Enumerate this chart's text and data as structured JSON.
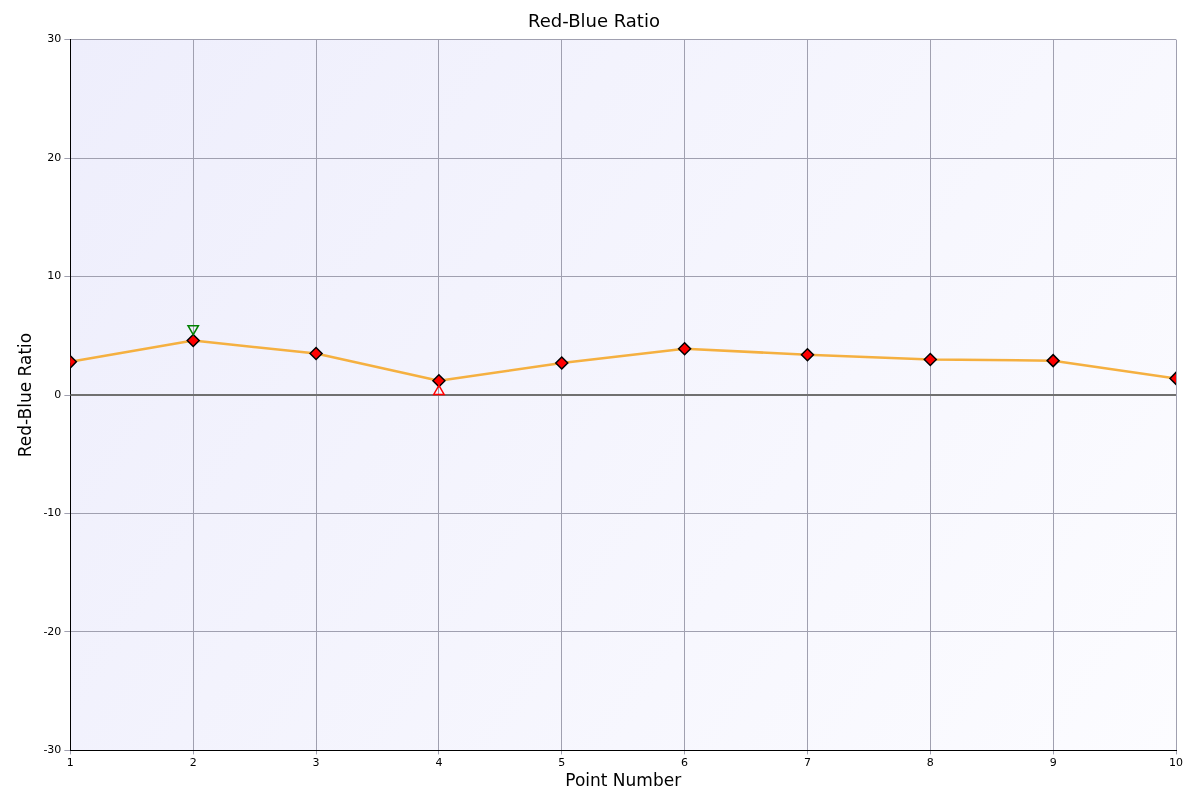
{
  "chart_data": {
    "type": "line",
    "title": "Red-Blue Ratio",
    "xlabel": "Point Number",
    "ylabel": "Red-Blue Ratio",
    "x": [
      1,
      2,
      3,
      4,
      5,
      6,
      7,
      8,
      9,
      10
    ],
    "series": [
      {
        "color": "#f5b040",
        "values": [
          2.8,
          4.6,
          3.5,
          1.2,
          2.7,
          3.9,
          3.4,
          3.0,
          2.9,
          1.4
        ],
        "marker": "diamond"
      },
      {
        "type": "scatter",
        "color": "#008000",
        "x": [
          2
        ],
        "values": [
          5.6
        ],
        "marker": "triangle"
      },
      {
        "type": "scatter",
        "color": "#ff0000",
        "x": [
          4
        ],
        "values": [
          0.3
        ],
        "marker": "triangle"
      }
    ],
    "xlim": [
      1,
      10
    ],
    "xticks": [
      1,
      2,
      3,
      4,
      5,
      6,
      7,
      8,
      9,
      10
    ],
    "ylim": [
      -30,
      30
    ],
    "yticks": [
      -30,
      -20,
      -10,
      0,
      10,
      20,
      30
    ],
    "ref_lines": [
      {
        "axis": "y",
        "value": 0,
        "color": "#707070"
      }
    ],
    "grid": true,
    "legend": false
  }
}
